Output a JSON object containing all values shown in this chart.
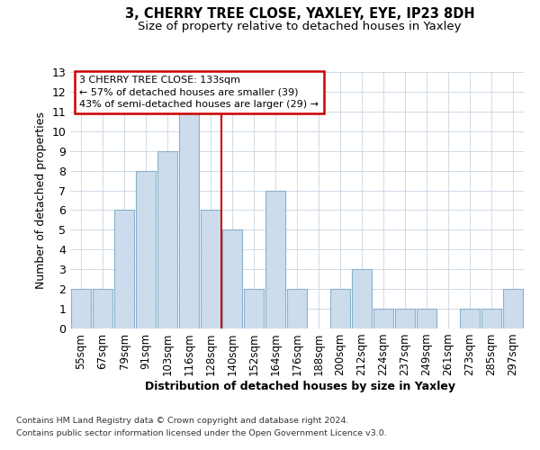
{
  "title1": "3, CHERRY TREE CLOSE, YAXLEY, EYE, IP23 8DH",
  "title2": "Size of property relative to detached houses in Yaxley",
  "xlabel": "Distribution of detached houses by size in Yaxley",
  "ylabel": "Number of detached properties",
  "categories": [
    "55sqm",
    "67sqm",
    "79sqm",
    "91sqm",
    "103sqm",
    "116sqm",
    "128sqm",
    "140sqm",
    "152sqm",
    "164sqm",
    "176sqm",
    "188sqm",
    "200sqm",
    "212sqm",
    "224sqm",
    "237sqm",
    "249sqm",
    "261sqm",
    "273sqm",
    "285sqm",
    "297sqm"
  ],
  "values": [
    2,
    2,
    6,
    8,
    9,
    11,
    6,
    5,
    2,
    7,
    2,
    0,
    2,
    3,
    1,
    1,
    1,
    0,
    1,
    1,
    2
  ],
  "bar_color": "#ccdcec",
  "bar_edge_color": "#8ab0cc",
  "reference_line_x": 6.5,
  "ylim": [
    0,
    13
  ],
  "yticks": [
    0,
    1,
    2,
    3,
    4,
    5,
    6,
    7,
    8,
    9,
    10,
    11,
    12,
    13
  ],
  "annotation_title": "3 CHERRY TREE CLOSE: 133sqm",
  "annotation_line1": "← 57% of detached houses are smaller (39)",
  "annotation_line2": "43% of semi-detached houses are larger (29) →",
  "footnote1": "Contains HM Land Registry data © Crown copyright and database right 2024.",
  "footnote2": "Contains public sector information licensed under the Open Government Licence v3.0.",
  "bg_color": "#ffffff",
  "plot_bg_color": "#ffffff",
  "grid_color": "#c8d4e0"
}
